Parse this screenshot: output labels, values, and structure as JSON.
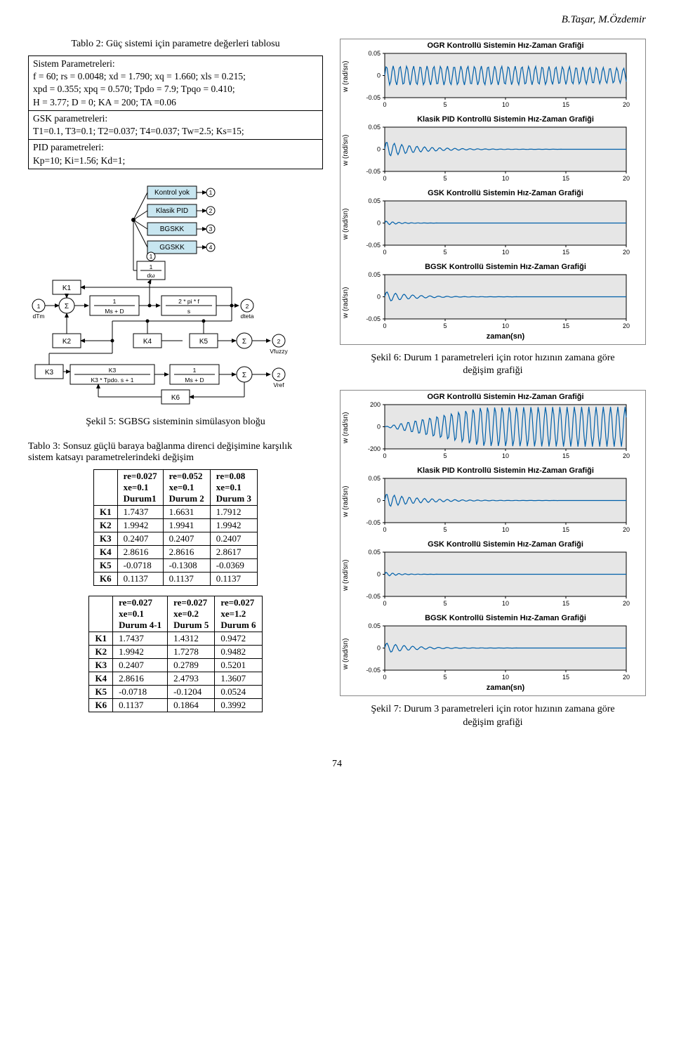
{
  "header": {
    "authors": "B.Taşar, M.Özdemir"
  },
  "table2": {
    "caption": "Tablo 2: Güç sistemi için parametre değerleri tablosu",
    "rows": [
      "Sistem Parametreleri:\nf = 60;  rs = 0.0048;  xd = 1.790;  xq = 1.660;  xls = 0.215;\nxpd = 0.355;  xpq = 0.570;  Tpdo = 7.9;    Tpqo = 0.410;\nH = 3.77;  D = 0;  KA = 200;   TA =0.06",
      "GSK parametreleri:\nT1=0.1, T3=0.1; T2=0.037; T4=0.037; Tw=2.5; Ks=15;",
      "PID parametreleri:\nKp=10;  Ki=1.56; Kd=1;"
    ]
  },
  "fig5": {
    "caption": "Şekil 5: SGBSG sisteminin simülasyon bloğu",
    "blocks": {
      "kontrol_yok": "Kontrol yok",
      "klasik_pid": "Klasik PID",
      "bgskk": "BGSKK",
      "ggskk": "GGSKK",
      "k1": "K1",
      "k2": "K2",
      "k3": "K3",
      "k4": "K4",
      "k5": "K5",
      "k6": "K6",
      "tf1": "1\nMs + D",
      "tf2": "2 * pi * f\ns",
      "tf3": "K3\nK3 * Tpdo. s + 1",
      "tf_dw": "1\ndω",
      "dteta": "dteta",
      "vfuzzy": "Vfuzzy",
      "vref": "Vref",
      "dtm": "dTm",
      "sum": "Σ",
      "port1": "1",
      "port2": "2",
      "port3": "3",
      "port4": "4"
    }
  },
  "table3": {
    "caption": "Tablo 3: Sonsuz güçlü baraya bağlanma direnci değişimine karşılık\nsistem katsayı parametrelerindeki değişim",
    "upper": {
      "headers": [
        "re=0.027\nxe=0.1\nDurum1",
        "re=0.052\nxe=0.1\nDurum 2",
        "re=0.08\nxe=0.1\nDurum 3"
      ],
      "rows": [
        {
          "k": "K1",
          "v": [
            "1.7437",
            "1.6631",
            "1.7912"
          ]
        },
        {
          "k": "K2",
          "v": [
            "1.9942",
            "1.9941",
            "1.9942"
          ]
        },
        {
          "k": "K3",
          "v": [
            "0.2407",
            "0.2407",
            "0.2407"
          ]
        },
        {
          "k": "K4",
          "v": [
            "2.8616",
            "2.8616",
            "2.8617"
          ]
        },
        {
          "k": "K5",
          "v": [
            "-0.0718",
            "-0.1308",
            "-0.0369"
          ]
        },
        {
          "k": "K6",
          "v": [
            "0.1137",
            "0.1137",
            "0.1137"
          ]
        }
      ]
    },
    "lower": {
      "headers": [
        "re=0.027\nxe=0.1\nDurum 4-1",
        "re=0.027\nxe=0.2\nDurum 5",
        "re=0.027\nxe=1.2\nDurum 6"
      ],
      "rows": [
        {
          "k": "K1",
          "v": [
            "1.7437",
            "1.4312",
            "0.9472"
          ]
        },
        {
          "k": "K2",
          "v": [
            "1.9942",
            "1.7278",
            "0.9482"
          ]
        },
        {
          "k": "K3",
          "v": [
            "0.2407",
            "0.2789",
            "0.5201"
          ]
        },
        {
          "k": "K4",
          "v": [
            "2.8616",
            "2.4793",
            "1.3607"
          ]
        },
        {
          "k": "K5",
          "v": [
            "-0.0718",
            "-0.1204",
            "0.0524"
          ]
        },
        {
          "k": "K6",
          "v": [
            "0.1137",
            "0.1864",
            "0.3992"
          ]
        }
      ]
    }
  },
  "charts": {
    "ylabel": "w (rad/sn)",
    "xlabel": "zaman(sn)",
    "xlim": [
      0,
      20
    ],
    "xticks": [
      0,
      5,
      10,
      15,
      20
    ],
    "line_color": "#0060aa",
    "bg_color": "#e6e6e6",
    "axis_color": "#000000",
    "ylabel_fontsize": 10,
    "title_fontsize": 11
  },
  "fig6": {
    "caption": "Şekil 6: Durum 1 parametreleri için rotor hızının zamana göre\ndeğişim grafiği",
    "subplots": [
      {
        "title": "OGR Kontrollü Sistemin Hız-Zaman Grafiği",
        "ylim": [
          -0.05,
          0.05
        ],
        "yticks": [
          -0.05,
          0,
          0.05
        ],
        "mode": "osc",
        "amp": 0.014,
        "freq": 32,
        "settle": 22
      },
      {
        "title": "Klasik PID Kontrollü Sistemin Hız-Zaman Grafiği",
        "ylim": [
          -0.05,
          0.05
        ],
        "yticks": [
          -0.05,
          0,
          0.05
        ],
        "mode": "damped",
        "amp": 0.018,
        "freq": 25,
        "settle": 5
      },
      {
        "title": "GSK Kontrollü Sistemin Hız-Zaman Grafiği",
        "ylim": [
          -0.05,
          0.05
        ],
        "yticks": [
          -0.05,
          0,
          0.05
        ],
        "mode": "damped",
        "amp": 0.005,
        "freq": 30,
        "settle": 2
      },
      {
        "title": "BGSK Kontrollü Sistemin Hız-Zaman Grafiği",
        "ylim": [
          -0.05,
          0.05
        ],
        "yticks": [
          -0.05,
          0,
          0.05
        ],
        "mode": "damped",
        "amp": 0.012,
        "freq": 22,
        "settle": 4
      }
    ]
  },
  "fig7": {
    "caption": "Şekil 7: Durum 3 parametreleri için rotor hızının zamana göre\ndeğişim grafiği",
    "subplots": [
      {
        "title": "OGR Kontrollü Sistemin Hız-Zaman Grafiği",
        "ylim": [
          -200,
          200
        ],
        "yticks": [
          -200,
          0,
          200
        ],
        "mode": "diverge",
        "amp": 180,
        "freq": 30,
        "settle": 20
      },
      {
        "title": "Klasik PID Kontrollü Sistemin Hız-Zaman Grafiği",
        "ylim": [
          -0.05,
          0.05
        ],
        "yticks": [
          -0.05,
          0,
          0.05
        ],
        "mode": "damped",
        "amp": 0.016,
        "freq": 25,
        "settle": 5
      },
      {
        "title": "GSK Kontrollü Sistemin Hız-Zaman Grafiği",
        "ylim": [
          -0.05,
          0.05
        ],
        "yticks": [
          -0.05,
          0,
          0.05
        ],
        "mode": "damped",
        "amp": 0.005,
        "freq": 30,
        "settle": 2
      },
      {
        "title": "BGSK Kontrollü Sistemin Hız-Zaman Grafiği",
        "ylim": [
          -0.05,
          0.05
        ],
        "yticks": [
          -0.05,
          0,
          0.05
        ],
        "mode": "damped",
        "amp": 0.012,
        "freq": 22,
        "settle": 4
      }
    ]
  },
  "page_number": "74"
}
